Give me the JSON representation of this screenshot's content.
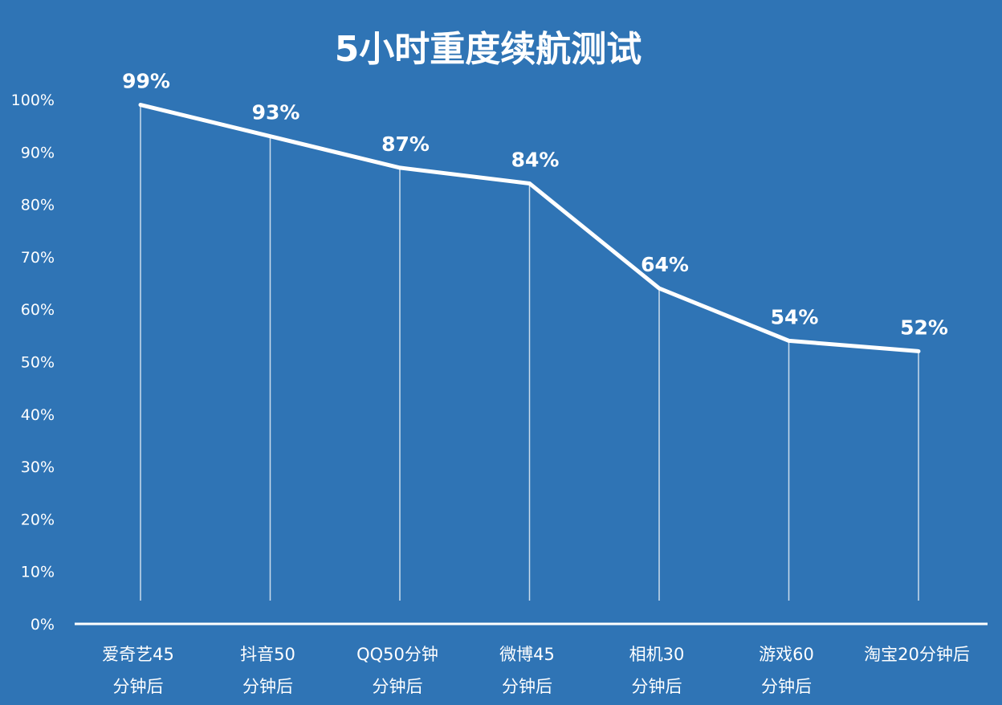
{
  "chart_data": {
    "type": "line",
    "title": "5小时重度续航测试",
    "xlabel": "",
    "ylabel": "",
    "ylim": [
      0,
      100
    ],
    "grid": false,
    "y_ticks": [
      "0%",
      "10%",
      "20%",
      "30%",
      "40%",
      "50%",
      "60%",
      "70%",
      "80%",
      "90%",
      "100%"
    ],
    "categories": [
      [
        "爱奇艺45",
        "分钟后"
      ],
      [
        "抖音50",
        "分钟后"
      ],
      [
        "QQ50分钟",
        "分钟后"
      ],
      [
        "微博45",
        "分钟后"
      ],
      [
        "相机30",
        "分钟后"
      ],
      [
        "游戏60",
        "分钟后"
      ],
      [
        "淘宝20分钟后"
      ]
    ],
    "values": [
      99,
      93,
      87,
      84,
      64,
      54,
      52
    ],
    "data_labels": [
      "99%",
      "93%",
      "87%",
      "84%",
      "64%",
      "54%",
      "52%"
    ],
    "colors": {
      "background": "#2f74b5",
      "line": "#ffffff",
      "text": "#ffffff"
    }
  }
}
